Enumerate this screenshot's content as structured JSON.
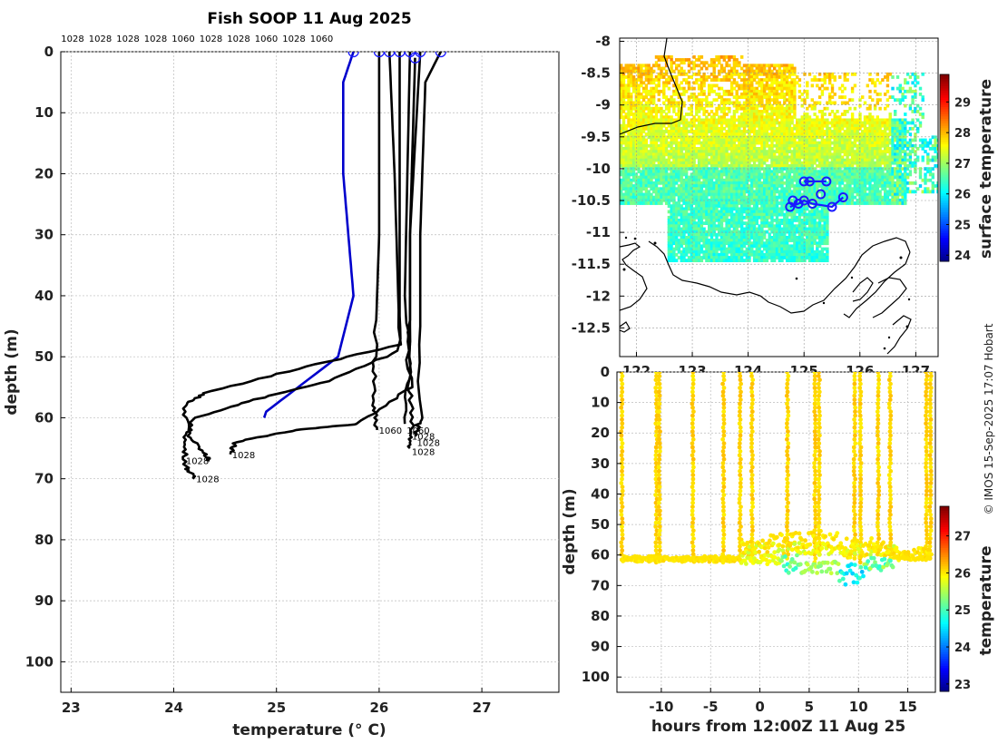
{
  "title": "Fish SOOP 11 Aug 2025",
  "credit": "© IMOS 15-Sep-2025 17:07 Hobart",
  "chart_data": [
    {
      "id": "profiles",
      "type": "line",
      "title": "Fish SOOP 11 Aug 2025",
      "xlabel": "temperature (° C)",
      "ylabel": "depth (m)",
      "xlim": [
        22.9,
        27.75
      ],
      "ylim": [
        105,
        0
      ],
      "xticks": [
        23,
        24,
        25,
        26,
        27
      ],
      "yticks": [
        0,
        10,
        20,
        30,
        40,
        50,
        60,
        70,
        80,
        90,
        100
      ],
      "grid": true,
      "top_labels": [
        "1028",
        "1028",
        "1028",
        "1028",
        "1060",
        "1028",
        "1028",
        "1060",
        "1028",
        "1060"
      ],
      "series": [
        {
          "name": "1028",
          "color": "#0000cc",
          "points": [
            [
              25.75,
              0
            ],
            [
              25.65,
              5
            ],
            [
              25.65,
              20
            ],
            [
              25.7,
              30
            ],
            [
              25.75,
              40
            ],
            [
              25.6,
              50
            ],
            [
              24.9,
              59
            ],
            [
              24.88,
              60
            ]
          ]
        },
        {
          "name": "1060",
          "color": "#000000",
          "points": [
            [
              26.0,
              0
            ],
            [
              26.0,
              30
            ],
            [
              25.96,
              50
            ],
            [
              25.95,
              58
            ],
            [
              25.98,
              62
            ]
          ]
        },
        {
          "name": "1028",
          "color": "#000000",
          "points": [
            [
              26.1,
              0
            ],
            [
              26.15,
              20
            ],
            [
              26.2,
              48
            ],
            [
              25.2,
              52
            ],
            [
              24.3,
              56
            ],
            [
              24.1,
              58
            ],
            [
              24.15,
              63
            ],
            [
              24.3,
              66
            ],
            [
              24.35,
              67
            ]
          ]
        },
        {
          "name": "1028",
          "color": "#000000",
          "points": [
            [
              26.2,
              0
            ],
            [
              26.2,
              30
            ],
            [
              26.2,
              49
            ],
            [
              25.5,
              54
            ],
            [
              24.8,
              57
            ],
            [
              24.2,
              60
            ],
            [
              24.1,
              64
            ],
            [
              24.12,
              68
            ],
            [
              24.2,
              70
            ]
          ]
        },
        {
          "name": "1028",
          "color": "#000000",
          "points": [
            [
              26.3,
              0
            ],
            [
              26.25,
              40
            ],
            [
              26.3,
              55
            ],
            [
              25.8,
              61
            ],
            [
              25.2,
              62
            ],
            [
              24.6,
              64
            ],
            [
              24.55,
              66
            ]
          ]
        },
        {
          "name": "1060",
          "color": "#000000",
          "points": [
            [
              26.4,
              0
            ],
            [
              26.3,
              30
            ],
            [
              26.3,
              50
            ],
            [
              26.25,
              61
            ]
          ]
        },
        {
          "name": "1028",
          "color": "#000000",
          "points": [
            [
              26.6,
              0
            ],
            [
              26.45,
              5
            ],
            [
              26.4,
              30
            ],
            [
              26.4,
              60
            ],
            [
              26.35,
              63
            ]
          ]
        },
        {
          "name": "1028",
          "color": "#000000",
          "points": [
            [
              26.35,
              1
            ],
            [
              26.3,
              30
            ],
            [
              26.3,
              55
            ],
            [
              26.32,
              62
            ],
            [
              26.3,
              65
            ]
          ]
        }
      ],
      "end_labels": [
        {
          "text": "1028",
          "x": 24.1,
          "y": 67
        },
        {
          "text": "1028",
          "x": 24.2,
          "y": 70
        },
        {
          "text": "1028",
          "x": 24.55,
          "y": 66
        },
        {
          "text": "1060",
          "x": 25.98,
          "y": 62
        },
        {
          "text": "1060",
          "x": 26.25,
          "y": 62
        },
        {
          "text": "1028",
          "x": 26.3,
          "y": 63
        },
        {
          "text": "1028",
          "x": 26.35,
          "y": 64
        },
        {
          "text": "1028",
          "x": 26.3,
          "y": 65.5
        }
      ]
    },
    {
      "id": "map",
      "type": "heatmap",
      "xlim": [
        121.7,
        127.4
      ],
      "ylim": [
        -12.95,
        -7.95
      ],
      "xticks": [
        122,
        123,
        124,
        125,
        126,
        127
      ],
      "xtick_labels": [
        "122",
        "123",
        "124",
        "125",
        "126",
        "127"
      ],
      "yticks": [
        -8,
        -8.5,
        -9,
        -9.5,
        -10,
        -10.5,
        -11,
        -11.5,
        -12,
        -12.5
      ],
      "ytick_labels": [
        "-8",
        "-8.5",
        "-9",
        "-9.5",
        "-10",
        "-10.5",
        "-11",
        "-11.5",
        "-12",
        "-12.5"
      ],
      "colorbar": {
        "label": "surface temperature",
        "min": 23.8,
        "max": 29.9,
        "ticks": [
          24,
          25,
          26,
          27,
          28,
          29
        ],
        "tick_labels": [
          "24",
          "25",
          "26",
          "27",
          "28",
          "29"
        ]
      },
      "track_points": [
        [
          124.75,
          -10.6
        ],
        [
          124.9,
          -10.55
        ],
        [
          125.0,
          -10.5
        ],
        [
          125.15,
          -10.55
        ],
        [
          125.5,
          -10.6
        ],
        [
          125.7,
          -10.45
        ],
        [
          125.3,
          -10.4
        ],
        [
          124.8,
          -10.5
        ],
        [
          125.0,
          -10.2
        ],
        [
          125.1,
          -10.2
        ],
        [
          125.4,
          -10.2
        ]
      ]
    },
    {
      "id": "depth_time",
      "type": "scatter",
      "xlabel": "hours from 12:00Z 11 Aug 25",
      "ylabel": "depth (m)",
      "xlim": [
        -14.5,
        17.8
      ],
      "ylim": [
        105,
        0
      ],
      "xticks": [
        -10,
        -5,
        0,
        5,
        10,
        15
      ],
      "xtick_labels": [
        "-10",
        "-5",
        "0",
        "5",
        "10",
        "15"
      ],
      "yticks": [
        0,
        10,
        20,
        30,
        40,
        50,
        60,
        70,
        80,
        90,
        100
      ],
      "ytick_labels": [
        "0",
        "10",
        "20",
        "30",
        "40",
        "50",
        "60",
        "70",
        "80",
        "90",
        "100"
      ],
      "colorbar": {
        "label": "temperature",
        "min": 22.8,
        "max": 27.8,
        "ticks": [
          23,
          24,
          25,
          26,
          27
        ],
        "tick_labels": [
          "23",
          "24",
          "25",
          "26",
          "27"
        ]
      }
    }
  ]
}
